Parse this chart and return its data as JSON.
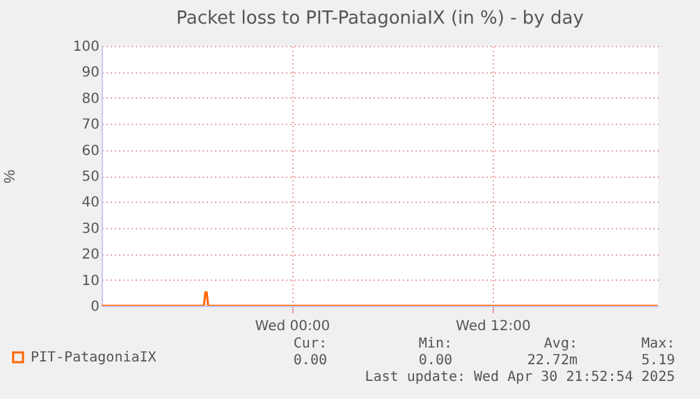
{
  "chart_data": {
    "type": "line",
    "title": "Packet loss to PIT-PatagoniaIX (in %) - by day",
    "ylabel": "%",
    "x": [
      "2025-04-29T12:38",
      "2025-04-29T18:45",
      "2025-04-29T18:50",
      "2025-04-29T18:55",
      "2025-04-29T19:00",
      "2025-04-30T21:52"
    ],
    "series": [
      {
        "name": "PIT-PatagoniaIX",
        "color": "#ff6600",
        "values": [
          0,
          0,
          5.19,
          5.19,
          0,
          0
        ]
      }
    ],
    "xlim": [
      "2025-04-29T12:38",
      "2025-04-30T21:54"
    ],
    "xticks": [
      {
        "value": "2025-04-30T00:00",
        "label": "Wed 00:00"
      },
      {
        "value": "2025-04-30T12:00",
        "label": "Wed 12:00"
      }
    ],
    "ylim": [
      0,
      100
    ],
    "yticks": [
      0,
      10,
      20,
      30,
      40,
      50,
      60,
      70,
      80,
      90,
      100
    ],
    "grid": true,
    "legend": "bottom",
    "marker": "none",
    "line_style": "solid",
    "annotations": [
      "Cur:",
      "Min:",
      "Avg:",
      "Max:",
      "0.00",
      "0.00",
      "22.72m",
      "5.19",
      "Last update: Wed Apr 30 21:52:54 2025"
    ]
  }
}
